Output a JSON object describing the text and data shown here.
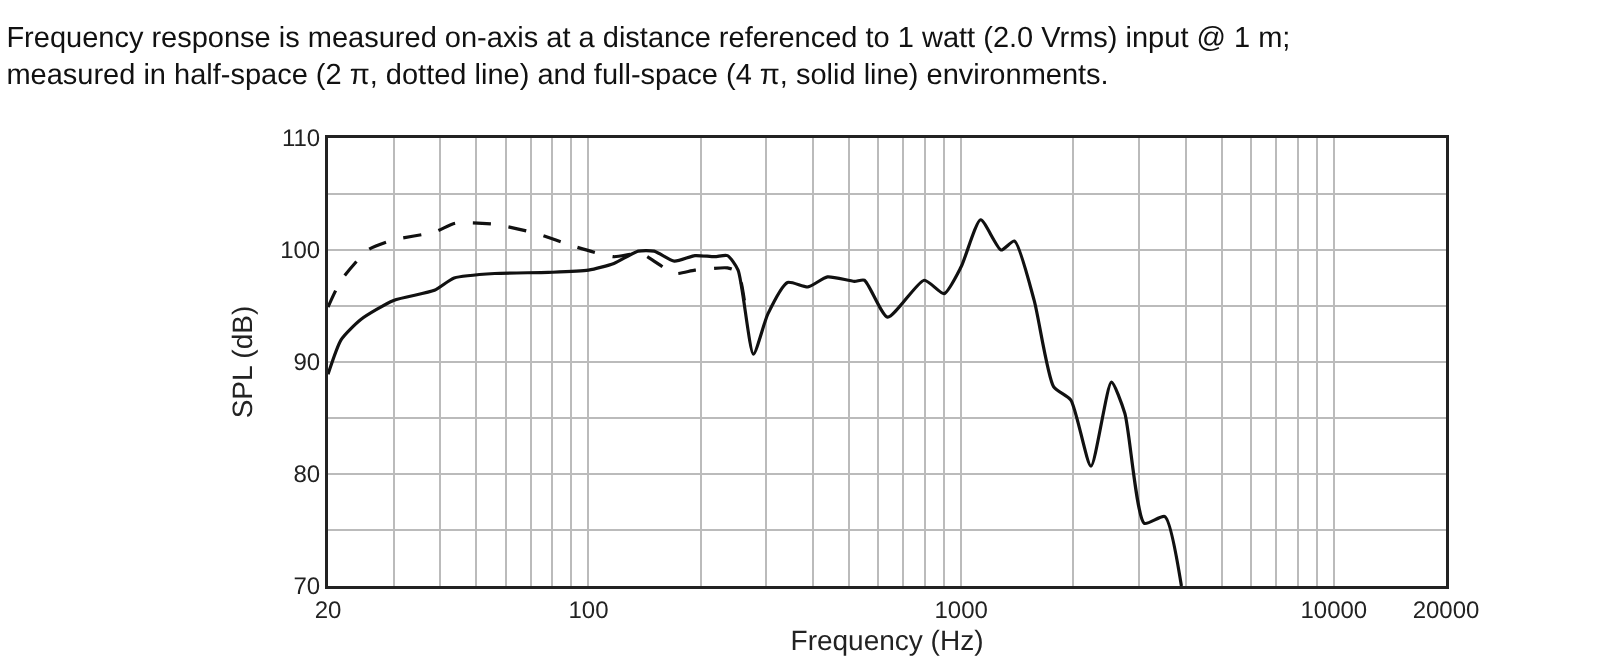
{
  "chart_data": {
    "type": "line",
    "title": "Frequency response is measured on-axis at a distance referenced to 1 watt (2.0 Vrms) input @ 1 m;\nmeasured in half-space (2 π, dotted line) and full-space (4 π, solid line) environments.",
    "xlabel": "Frequency (Hz)",
    "ylabel": "SPL (dB)",
    "log": "x",
    "grid": true,
    "marker": "none",
    "xlim": [
      20,
      20000
    ],
    "ylim": [
      70,
      110
    ],
    "xticks": [
      20,
      {
        "value": 30,
        "label": null
      },
      {
        "value": 40,
        "label": null
      },
      {
        "value": 50,
        "label": null
      },
      {
        "value": 60,
        "label": null
      },
      {
        "value": 70,
        "label": null
      },
      {
        "value": 80,
        "label": null
      },
      {
        "value": 90,
        "label": null
      },
      100,
      {
        "value": 200,
        "label": null
      },
      {
        "value": 300,
        "label": null
      },
      {
        "value": 400,
        "label": null
      },
      {
        "value": 500,
        "label": null
      },
      {
        "value": 600,
        "label": null
      },
      {
        "value": 700,
        "label": null
      },
      {
        "value": 800,
        "label": null
      },
      {
        "value": 900,
        "label": null
      },
      1000,
      {
        "value": 2000,
        "label": null
      },
      {
        "value": 3000,
        "label": null
      },
      {
        "value": 4000,
        "label": null
      },
      {
        "value": 5000,
        "label": null
      },
      {
        "value": 6000,
        "label": null
      },
      {
        "value": 7000,
        "label": null
      },
      {
        "value": 8000,
        "label": null
      },
      {
        "value": 9000,
        "label": null
      },
      10000,
      20000
    ],
    "yticks": [
      70,
      {
        "value": 75,
        "label": null
      },
      80,
      {
        "value": 85,
        "label": null
      },
      90,
      {
        "value": 95,
        "label": null
      },
      100,
      {
        "value": 105,
        "label": null
      },
      110
    ],
    "series": [
      {
        "color": "#111111",
        "line_style": "dashed",
        "x": [
          20,
          21.7,
          25.6,
          30,
          38.6,
          44,
          56,
          72,
          92,
          117,
          138,
          170,
          193,
          236,
          252,
          262
        ],
        "values": [
          94.9,
          97.3,
          100,
          100.9,
          101.6,
          102.4,
          102.3,
          101.5,
          100.3,
          99.4,
          99.7,
          97.9,
          98.2,
          98.4,
          98.0,
          95.5
        ]
      },
      {
        "color": "#111111",
        "line_style": "solid",
        "x": [
          20,
          21.7,
          24.5,
          30,
          38.6,
          43.6,
          56,
          78,
          100,
          117,
          136,
          150,
          170,
          193,
          218,
          236,
          252,
          277,
          303,
          342,
          388,
          438,
          517,
          550,
          635,
          796,
          900,
          1000,
          1128,
          1280,
          1390,
          1570,
          1770,
          1970,
          2230,
          2530,
          2750,
          3100,
          3520,
          3900
        ],
        "values": [
          88.9,
          92.0,
          93.8,
          95.5,
          96.4,
          97.5,
          97.9,
          98.0,
          98.2,
          98.8,
          99.9,
          99.9,
          99.0,
          99.5,
          99.4,
          99.5,
          98.2,
          90.7,
          94.3,
          97.1,
          96.7,
          97.6,
          97.2,
          97.3,
          94.0,
          97.3,
          96.1,
          98.5,
          102.7,
          100.0,
          100.8,
          95.5,
          87.8,
          86.6,
          80.7,
          88.2,
          85.4,
          75.6,
          76.2,
          70
        ]
      }
    ]
  }
}
